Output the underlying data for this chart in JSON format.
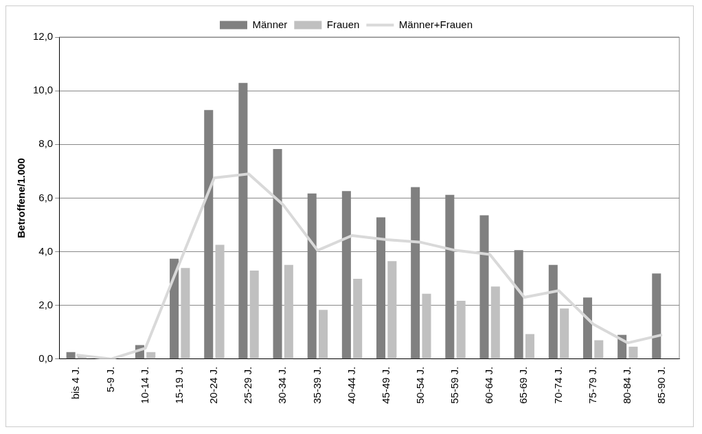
{
  "chart_data": {
    "type": "bar",
    "ylabel": "Betroffene/1.000",
    "categories": [
      "bis 4 J.",
      "5-9 J.",
      "10-14 J.",
      "15-19 J.",
      "20-24 J.",
      "25-29 J.",
      "30-34 J.",
      "35-39 J.",
      "40-44 J.",
      "45-49 J.",
      "50-54 J.",
      "55-59 J.",
      "60-64 J.",
      "65-69 J.",
      "70-74 J.",
      "75-79 J.",
      "80-84 J.",
      "85-90 J."
    ],
    "series": [
      {
        "name": "Männer",
        "color": "#808080",
        "values": [
          0.26,
          0,
          0.52,
          3.74,
          9.28,
          10.29,
          7.83,
          6.17,
          6.26,
          5.28,
          6.41,
          6.12,
          5.36,
          4.06,
          3.51,
          2.29,
          0.9,
          3.19
        ]
      },
      {
        "name": "Frauen",
        "color": "#c0c0c0",
        "values": [
          0.1,
          0,
          0.26,
          3.39,
          4.26,
          3.3,
          3.51,
          1.83,
          2.99,
          3.65,
          2.43,
          2.17,
          2.7,
          0.93,
          1.88,
          0.7,
          0.46,
          0
        ]
      },
      {
        "name": "Männer+Frauen",
        "type": "line",
        "color": "#d9d9d9",
        "values": [
          0.15,
          0,
          0.4,
          3.6,
          6.75,
          6.9,
          5.75,
          4.05,
          4.6,
          4.45,
          4.35,
          4.05,
          3.9,
          2.3,
          2.55,
          1.3,
          0.6,
          0.9
        ]
      }
    ],
    "ylim": [
      0,
      12
    ],
    "yticks": [
      {
        "value": 0,
        "label": "0,0"
      },
      {
        "value": 2,
        "label": "2,0"
      },
      {
        "value": 4,
        "label": "4,0"
      },
      {
        "value": 6,
        "label": "6,0"
      },
      {
        "value": 8,
        "label": "8,0"
      },
      {
        "value": 10,
        "label": "10,0"
      },
      {
        "value": 12,
        "label": "12,0"
      }
    ],
    "grid": "y",
    "legend": "top",
    "marker": "none"
  }
}
